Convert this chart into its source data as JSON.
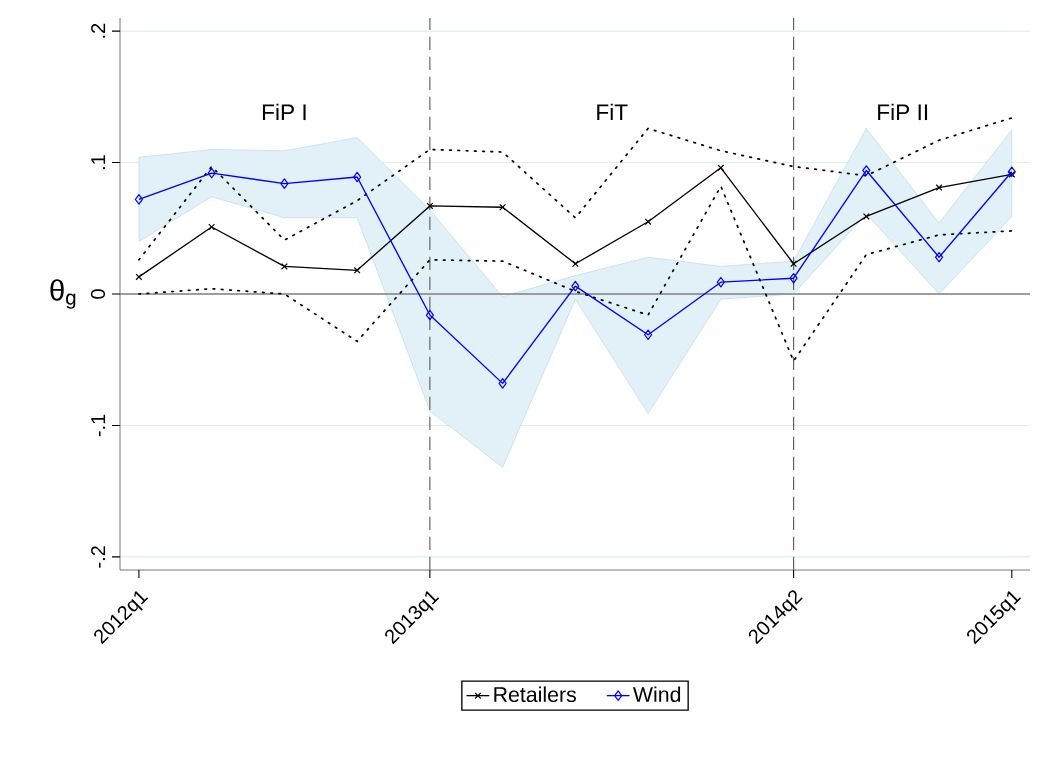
{
  "chart_data": {
    "type": "line",
    "ylabel": "θ$_{g}$",
    "categories": [
      "2012q1",
      null,
      null,
      null,
      "2013q1",
      null,
      null,
      null,
      null,
      "2014q2",
      null,
      null,
      "2015q1"
    ],
    "series": [
      {
        "name": "Retailers",
        "color": "#000000",
        "marker": "cross",
        "line_style": "solid",
        "values": [
          0.013,
          0.051,
          0.021,
          0.018,
          0.067,
          0.066,
          0.023,
          0.055,
          0.096,
          0.023,
          0.059,
          0.081,
          0.091
        ]
      },
      {
        "color": "#000000",
        "marker": "none",
        "line_style": "dotted",
        "values": [
          0.026,
          0.097,
          0.041,
          0.071,
          0.11,
          0.108,
          0.058,
          0.126,
          0.109,
          0.097,
          0.09,
          0.117,
          0.134
        ]
      },
      {
        "color": "#000000",
        "marker": "none",
        "line_style": "dotted",
        "values": [
          0.0,
          0.004,
          0.0,
          -0.036,
          0.026,
          0.025,
          0.002,
          -0.016,
          0.082,
          -0.051,
          0.03,
          0.045,
          0.048
        ]
      },
      {
        "name": "Wind",
        "color": "#0000ff",
        "marker": "diamond",
        "line_style": "solid",
        "values": [
          0.072,
          0.092,
          0.084,
          0.089,
          -0.016,
          -0.068,
          0.006,
          -0.031,
          0.009,
          0.012,
          0.094,
          0.028,
          0.093
        ],
        "lower": [
          0.04,
          0.074,
          0.058,
          0.058,
          -0.089,
          -0.132,
          -0.004,
          -0.091,
          -0.004,
          0.0,
          0.061,
          0.0,
          0.059
        ],
        "upper": [
          0.104,
          0.11,
          0.109,
          0.119,
          0.064,
          -0.002,
          0.014,
          0.028,
          0.021,
          0.025,
          0.126,
          0.054,
          0.125
        ]
      }
    ],
    "ylim": [
      -0.21,
      0.21
    ],
    "yticks": [
      {
        "value": -0.2,
        "label": "-.2"
      },
      {
        "value": -0.1,
        "label": "-.1"
      },
      0,
      {
        "value": 0.1,
        "label": ".1"
      },
      {
        "value": 0.2,
        "label": ".2"
      }
    ],
    "grid": "y",
    "legend": "bottom",
    "ref_lines": [
      {
        "axis": "y",
        "value": 0,
        "color": "#808080",
        "line_style": "solid"
      },
      {
        "axis": "x",
        "value": "2013q1",
        "color": "#606060",
        "line_style": "dashed"
      },
      {
        "axis": "x",
        "value": "2014q2",
        "color": "#606060",
        "line_style": "dashed"
      }
    ],
    "annotations": [
      "FiP I",
      "FiT",
      "FiP II"
    ]
  }
}
